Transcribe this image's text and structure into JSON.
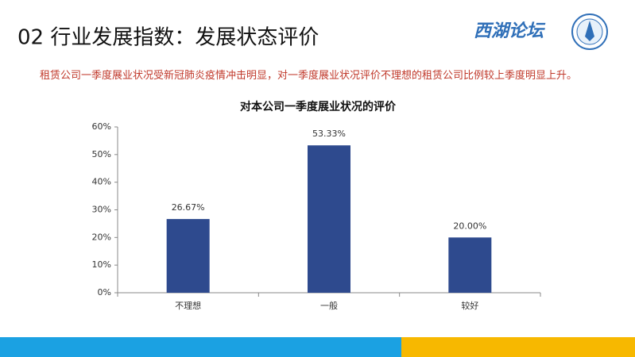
{
  "header": {
    "title": "02 行业发展指数：发展状态评价",
    "logo": "西湖论坛",
    "note": "租赁公司一季度展业状况受新冠肺炎疫情冲击明显，对一季度展业状况评价不理想的租赁公司比例较上季度明显上升。"
  },
  "chart_data": {
    "type": "bar",
    "title": "对本公司一季度展业状况的评价",
    "categories": [
      "不理想",
      "一般",
      "较好"
    ],
    "values": [
      26.67,
      53.33,
      20.0
    ],
    "value_labels": [
      "26.67%",
      "53.33%",
      "20.00%"
    ],
    "color": "#2e4a8e",
    "ylim": [
      0,
      60
    ],
    "yticks": [
      {
        "value": 0,
        "label": "0%"
      },
      {
        "value": 10,
        "label": "10%"
      },
      {
        "value": 20,
        "label": "20%"
      },
      {
        "value": 30,
        "label": "30%"
      },
      {
        "value": 40,
        "label": "40%"
      },
      {
        "value": 50,
        "label": "50%"
      },
      {
        "value": 60,
        "label": "60%"
      }
    ],
    "grid": false
  }
}
